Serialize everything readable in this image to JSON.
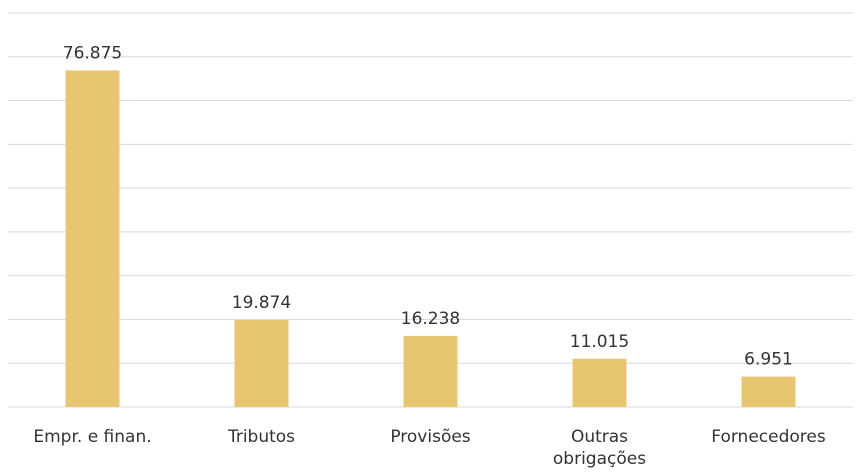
{
  "chart_data": {
    "type": "bar",
    "categories": [
      "Empr. e finan.",
      "Tributos",
      "Provisões",
      "Outras obrigações",
      "Fornecedores"
    ],
    "values": [
      76875,
      19874,
      16238,
      11015,
      6951
    ],
    "value_labels": [
      "76.875",
      "19.874",
      "16.238",
      "11.015",
      "6.951"
    ],
    "color": "#e8c571",
    "ylim": [
      0,
      90000
    ],
    "yticks": [
      0,
      10000,
      20000,
      30000,
      40000,
      50000,
      60000,
      70000,
      80000,
      90000
    ],
    "grid": true
  }
}
